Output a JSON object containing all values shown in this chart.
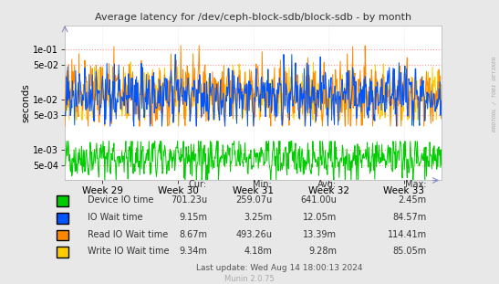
{
  "title": "Average latency for /dev/ceph-block-sdb/block-sdb - by month",
  "ylabel": "seconds",
  "background_color": "#e8e8e8",
  "plot_bg_color": "#ffffff",
  "grid_color_h": "#ff9999",
  "grid_color_v": "#dddddd",
  "x_labels": [
    "Week 29",
    "Week 30",
    "Week 31",
    "Week 32",
    "Week 33"
  ],
  "color_green": "#00cc00",
  "color_blue": "#0055ff",
  "color_orange": "#ff8800",
  "color_yellow": "#ffcc00",
  "legend_entries": [
    {
      "label": "Device IO time",
      "color": "#00cc00"
    },
    {
      "label": "IO Wait time",
      "color": "#0055ff"
    },
    {
      "label": "Read IO Wait time",
      "color": "#ff8800"
    },
    {
      "label": "Write IO Wait time",
      "color": "#ffcc00"
    }
  ],
  "table_headers": [
    "",
    "Cur:",
    "Min:",
    "Avg:",
    "Max:"
  ],
  "table_rows": [
    [
      "Device IO time",
      "701.23u",
      "259.07u",
      "641.00u",
      "2.45m"
    ],
    [
      "IO Wait time",
      "9.15m",
      "3.25m",
      "12.05m",
      "84.57m"
    ],
    [
      "Read IO Wait time",
      "8.67m",
      "493.26u",
      "13.39m",
      "114.41m"
    ],
    [
      "Write IO Wait time",
      "9.34m",
      "4.18m",
      "9.28m",
      "85.05m"
    ]
  ],
  "footer": "Last update: Wed Aug 14 18:00:13 2024",
  "watermark": "Munin 2.0.75",
  "rrdtool_label": "RRDTOOL / TOBI OETIKER"
}
